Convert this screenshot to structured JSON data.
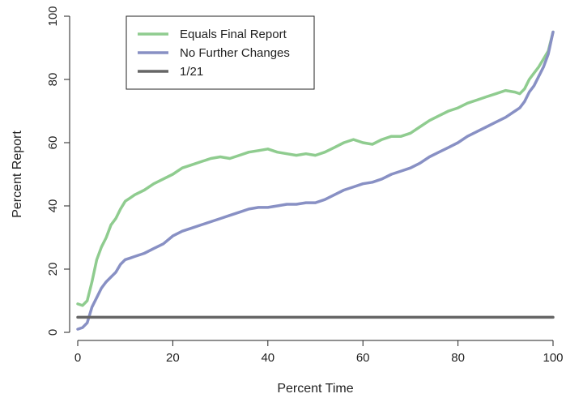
{
  "chart_data": {
    "type": "line",
    "xlabel": "Percent Time",
    "ylabel": "Percent Report",
    "xlim": [
      0,
      100
    ],
    "ylim": [
      0,
      100
    ],
    "xticks": [
      "0",
      "20",
      "40",
      "60",
      "80",
      "100"
    ],
    "yticks": [
      "0",
      "20",
      "40",
      "60",
      "80",
      "100"
    ],
    "grid": false,
    "legend_position": "top-left",
    "series": [
      {
        "name": "Equals Final Report",
        "color": "#8fcc8f",
        "x": [
          0,
          1,
          2,
          3,
          4,
          5,
          6,
          7,
          8,
          9,
          10,
          11,
          12,
          14,
          16,
          18,
          20,
          22,
          24,
          26,
          28,
          30,
          32,
          34,
          36,
          38,
          40,
          42,
          44,
          46,
          48,
          50,
          52,
          54,
          56,
          58,
          60,
          62,
          64,
          66,
          68,
          70,
          72,
          74,
          76,
          78,
          80,
          82,
          84,
          86,
          88,
          90,
          92,
          93,
          94,
          95,
          96,
          97,
          98,
          99,
          100
        ],
        "y": [
          9,
          8.5,
          10,
          16,
          23,
          27,
          30,
          34,
          36,
          39,
          41.5,
          42.5,
          43.5,
          45,
          47,
          48.5,
          50,
          52,
          53,
          54,
          55,
          55.5,
          55,
          56,
          57,
          57.5,
          58,
          57,
          56.5,
          56,
          56.5,
          56,
          57,
          58.5,
          60,
          61,
          60,
          59.5,
          61,
          62,
          62,
          63,
          65,
          67,
          68.5,
          70,
          71,
          72.5,
          73.5,
          74.5,
          75.5,
          76.5,
          76,
          75.5,
          77,
          80,
          82,
          84,
          86.5,
          89,
          95
        ]
      },
      {
        "name": "No Further Changes",
        "color": "#8890c4",
        "x": [
          0,
          1,
          2,
          3,
          4,
          5,
          6,
          7,
          8,
          9,
          10,
          11,
          12,
          14,
          16,
          18,
          20,
          22,
          24,
          26,
          28,
          30,
          32,
          34,
          36,
          38,
          40,
          42,
          44,
          46,
          48,
          50,
          52,
          54,
          56,
          58,
          60,
          62,
          64,
          66,
          68,
          70,
          72,
          74,
          76,
          78,
          80,
          82,
          84,
          86,
          88,
          90,
          92,
          93,
          94,
          95,
          96,
          97,
          98,
          99,
          100
        ],
        "y": [
          1,
          1.5,
          3,
          8,
          11,
          14,
          16,
          17.5,
          19,
          21.5,
          23,
          23.5,
          24,
          25,
          26.5,
          28,
          30.5,
          32,
          33,
          34,
          35,
          36,
          37,
          38,
          39,
          39.5,
          39.5,
          40,
          40.5,
          40.5,
          41,
          41,
          42,
          43.5,
          45,
          46,
          47,
          47.5,
          48.5,
          50,
          51,
          52,
          53.5,
          55.5,
          57,
          58.5,
          60,
          62,
          63.5,
          65,
          66.5,
          68,
          70,
          71,
          73,
          76,
          78,
          81,
          84,
          88,
          95
        ]
      },
      {
        "name": "1/21",
        "color": "#666666",
        "x": [
          0,
          100
        ],
        "y": [
          4.76,
          4.76
        ]
      }
    ]
  }
}
